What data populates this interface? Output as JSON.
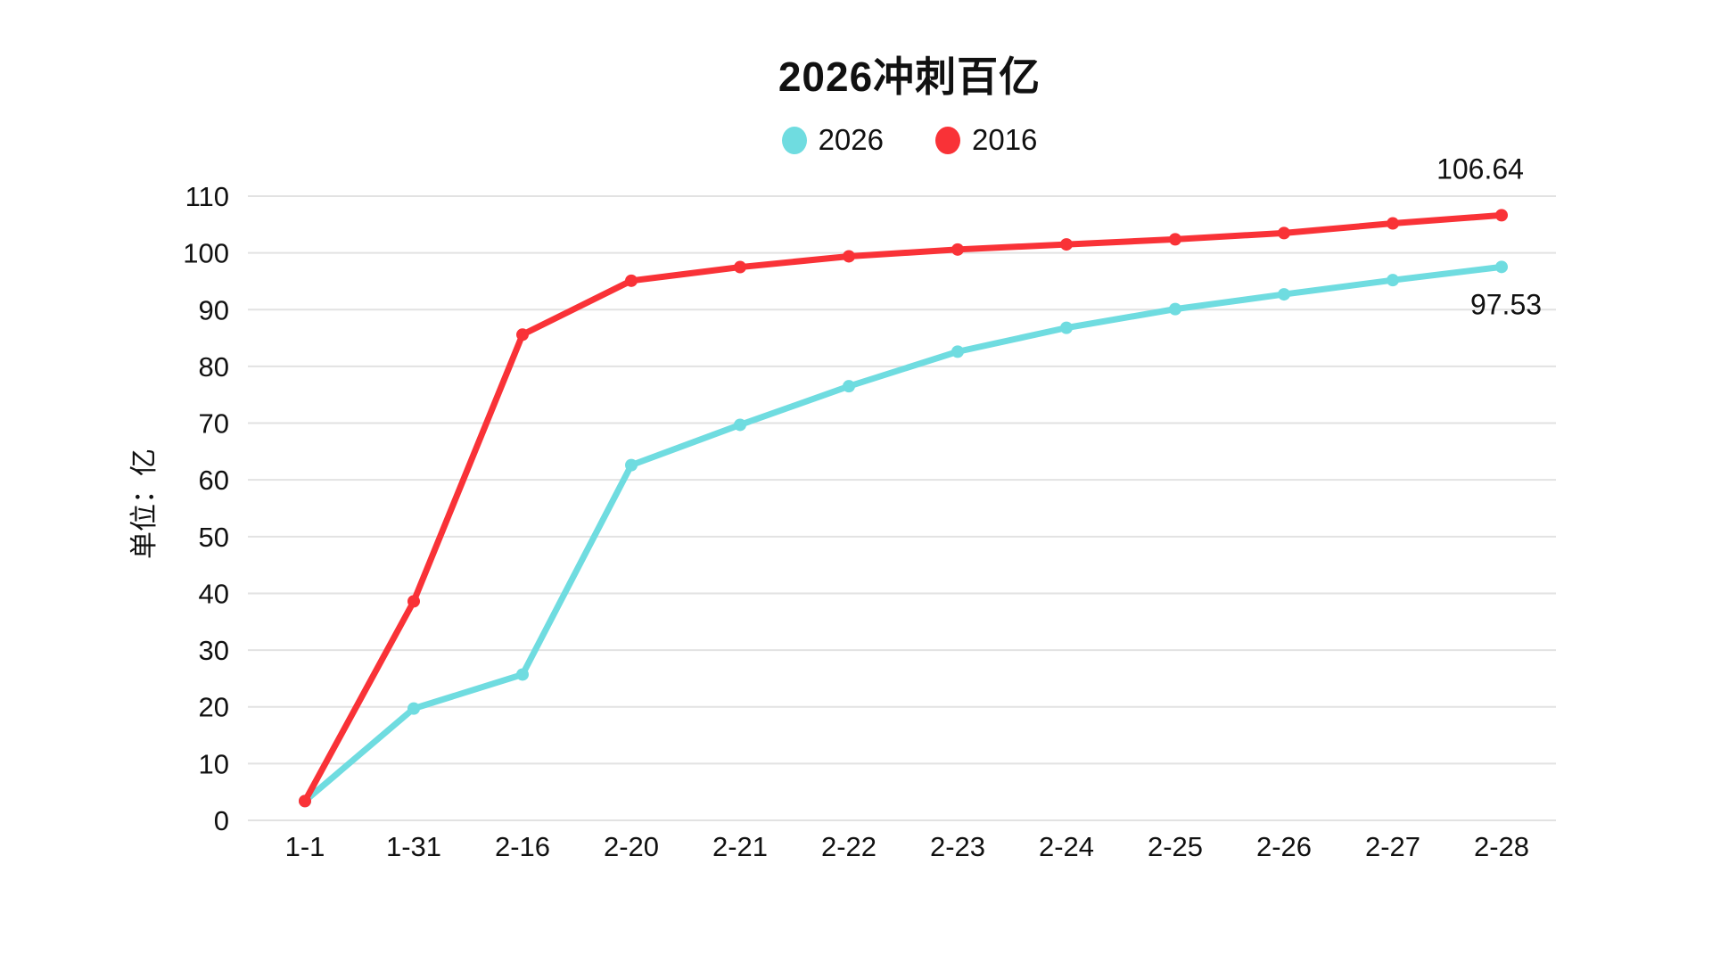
{
  "page": {
    "background": "#ffffff",
    "text_color": "#111111",
    "grid_color": "#e2e2e2"
  },
  "chart_data": {
    "type": "line",
    "title": "2026冲刺百亿",
    "xlabel": "",
    "ylabel": "单位：亿",
    "ylim": [
      0,
      110
    ],
    "grid": true,
    "legend_position": "top-center",
    "categories": [
      "1-1",
      "1-31",
      "2-16",
      "2-20",
      "2-21",
      "2-22",
      "2-23",
      "2-24",
      "2-25",
      "2-26",
      "2-27",
      "2-28"
    ],
    "yticks": [
      0,
      10,
      20,
      30,
      40,
      50,
      60,
      70,
      80,
      90,
      100,
      110
    ],
    "series": [
      {
        "name": "2026",
        "color": "#6fdce0",
        "values": [
          3.4,
          19.7,
          25.7,
          62.6,
          69.7,
          76.5,
          82.6,
          86.8,
          90.1,
          92.7,
          95.2,
          97.53
        ],
        "end_label": "97.53",
        "end_label_position": "below"
      },
      {
        "name": "2016",
        "color": "#f93237",
        "values": [
          3.4,
          38.6,
          85.6,
          95.1,
          97.5,
          99.4,
          100.6,
          101.5,
          102.4,
          103.5,
          105.2,
          106.64
        ],
        "end_label": "106.64",
        "end_label_position": "above"
      }
    ]
  }
}
